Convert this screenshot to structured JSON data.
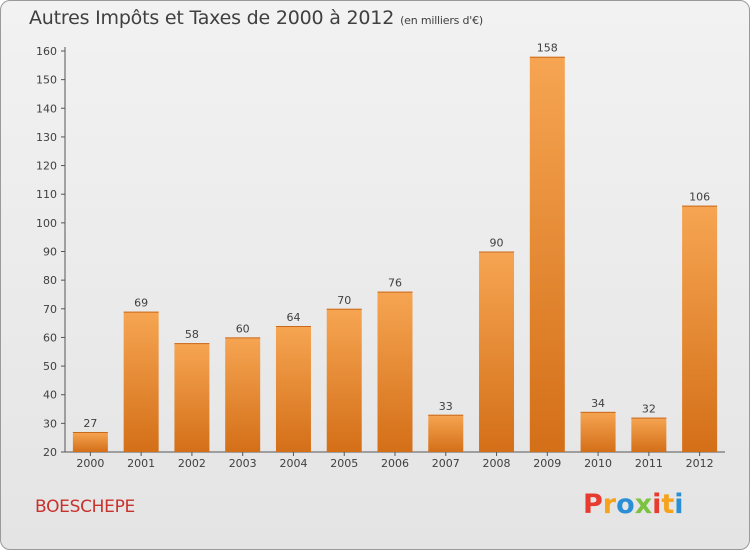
{
  "chart_title": "Autres Impôts et Taxes de 2000 à 2012",
  "chart_subtitle": "(en milliers d'€)",
  "city": "BOESCHEPE",
  "brand": {
    "letters": [
      "P",
      "r",
      "o",
      "x",
      "i",
      "t",
      "i"
    ],
    "colors": [
      "#e63b2e",
      "#f7a21b",
      "#2b8fd6",
      "#7cc242",
      "#e63b2e",
      "#f7a21b",
      "#2b8fd6"
    ]
  },
  "colors": {
    "bar_top": "#f6a552",
    "bar_bottom": "#d46f18",
    "text": "#404040",
    "city": "#c8312c"
  },
  "chart_data": {
    "type": "bar",
    "title": "Autres Impôts et Taxes de 2000 à 2012",
    "subtitle": "(en milliers d'€)",
    "xlabel": "",
    "ylabel": "",
    "categories": [
      "2000",
      "2001",
      "2002",
      "2003",
      "2004",
      "2005",
      "2006",
      "2007",
      "2008",
      "2009",
      "2010",
      "2011",
      "2012"
    ],
    "values": [
      27,
      69,
      58,
      60,
      64,
      70,
      76,
      33,
      90,
      158,
      34,
      32,
      106
    ],
    "ylim": [
      20,
      160
    ],
    "yticks": [
      20,
      30,
      40,
      50,
      60,
      70,
      80,
      90,
      100,
      110,
      120,
      130,
      140,
      150,
      160
    ],
    "grid": false,
    "legend": "none"
  }
}
